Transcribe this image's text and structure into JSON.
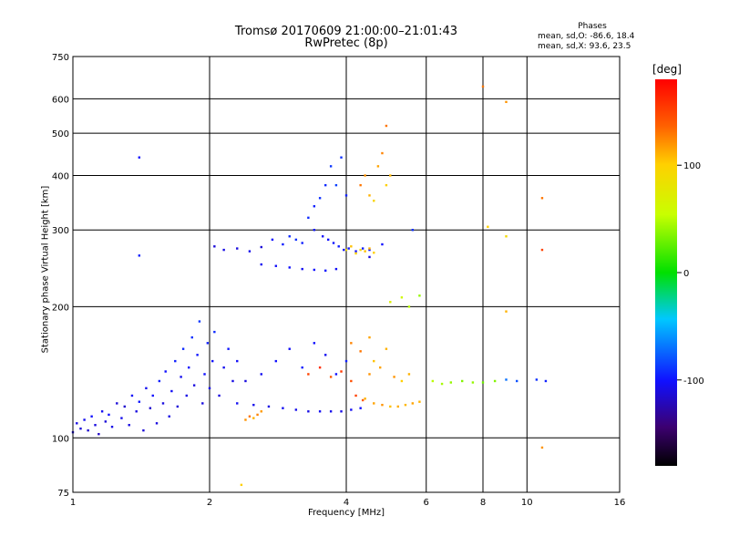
{
  "header": {
    "title_line1": "Tromsø 20170609 21:00:00–21:01:43",
    "title_line2": "RwPretec (8p)",
    "stats_heading": "Phases",
    "stats_o": "mean, sd,O: -86.6, 18.4",
    "stats_x": "mean, sd,X:  93.6, 23.5"
  },
  "colorbar": {
    "unit": "[deg]",
    "tick_labels": [
      "100",
      "0",
      "-100"
    ],
    "ticks": [
      100,
      0,
      -100
    ],
    "range": [
      -180,
      180
    ]
  },
  "chart_data": {
    "type": "scatter",
    "title": "Tromsø 20170609 21:00:00–21:01:43",
    "subtitle": "RwPretec (8p)",
    "xlabel": "Frequency [MHz]",
    "ylabel": "Stationary phase Virtual Height [km]",
    "x_scale": "log",
    "y_scale": "log",
    "xlim": [
      1,
      16
    ],
    "ylim": [
      75,
      750
    ],
    "x_ticks": [
      1,
      2,
      4,
      6,
      8,
      10,
      16
    ],
    "x_tick_labels": [
      "1",
      "2",
      "4",
      "6",
      "8",
      "10",
      "16"
    ],
    "y_ticks": [
      75,
      100,
      200,
      300,
      400,
      500,
      600,
      750
    ],
    "y_tick_labels": [
      "75",
      "100",
      "200",
      "300",
      "400",
      "500",
      "600",
      "750"
    ],
    "grid": true,
    "color_by": "phase [deg]",
    "series": [
      {
        "name": "O",
        "points": [
          [
            1.0,
            103,
            -110
          ],
          [
            1.02,
            108,
            -108
          ],
          [
            1.04,
            105,
            -112
          ],
          [
            1.06,
            110,
            -105
          ],
          [
            1.08,
            104,
            -115
          ],
          [
            1.1,
            112,
            -100
          ],
          [
            1.12,
            107,
            -110
          ],
          [
            1.14,
            102,
            -118
          ],
          [
            1.16,
            115,
            -104
          ],
          [
            1.18,
            109,
            -112
          ],
          [
            1.2,
            113,
            -100
          ],
          [
            1.22,
            106,
            -108
          ],
          [
            1.25,
            120,
            -112
          ],
          [
            1.28,
            111,
            -106
          ],
          [
            1.3,
            118,
            -115
          ],
          [
            1.33,
            107,
            -109
          ],
          [
            1.35,
            125,
            -102
          ],
          [
            1.38,
            115,
            -110
          ],
          [
            1.4,
            121,
            -98
          ],
          [
            1.43,
            104,
            -112
          ],
          [
            1.45,
            130,
            -105
          ],
          [
            1.48,
            117,
            -115
          ],
          [
            1.5,
            125,
            -100
          ],
          [
            1.53,
            108,
            -110
          ],
          [
            1.55,
            135,
            -95
          ],
          [
            1.58,
            120,
            -110
          ],
          [
            1.6,
            142,
            -100
          ],
          [
            1.63,
            112,
            -108
          ],
          [
            1.65,
            128,
            -103
          ],
          [
            1.68,
            150,
            -95
          ],
          [
            1.7,
            118,
            -112
          ],
          [
            1.73,
            138,
            -105
          ],
          [
            1.75,
            160,
            -92
          ],
          [
            1.78,
            125,
            -108
          ],
          [
            1.8,
            145,
            -100
          ],
          [
            1.83,
            170,
            -90
          ],
          [
            1.85,
            132,
            -110
          ],
          [
            1.88,
            155,
            -98
          ],
          [
            1.9,
            185,
            -88
          ],
          [
            1.93,
            120,
            -110
          ],
          [
            1.95,
            140,
            -100
          ],
          [
            1.98,
            165,
            -95
          ],
          [
            2.0,
            130,
            -108
          ],
          [
            2.03,
            150,
            -100
          ],
          [
            2.05,
            175,
            -92
          ],
          [
            2.1,
            125,
            -110
          ],
          [
            2.15,
            145,
            -105
          ],
          [
            2.2,
            160,
            -98
          ],
          [
            2.25,
            135,
            -108
          ],
          [
            2.3,
            150,
            -102
          ],
          [
            2.05,
            275,
            -112
          ],
          [
            2.15,
            270,
            -108
          ],
          [
            2.3,
            272,
            -110
          ],
          [
            2.45,
            268,
            -106
          ],
          [
            2.6,
            274,
            -112
          ],
          [
            2.75,
            285,
            -100
          ],
          [
            2.9,
            278,
            -96
          ],
          [
            3.0,
            290,
            -92
          ],
          [
            3.1,
            285,
            -90
          ],
          [
            3.2,
            280,
            -95
          ],
          [
            2.6,
            250,
            -104
          ],
          [
            2.8,
            248,
            -102
          ],
          [
            3.0,
            246,
            -100
          ],
          [
            3.2,
            244,
            -104
          ],
          [
            3.4,
            243,
            -100
          ],
          [
            3.6,
            242,
            -98
          ],
          [
            3.8,
            244,
            -102
          ],
          [
            3.3,
            320,
            -92
          ],
          [
            3.4,
            340,
            -95
          ],
          [
            3.5,
            355,
            -90
          ],
          [
            3.6,
            380,
            -92
          ],
          [
            3.7,
            420,
            -88
          ],
          [
            3.8,
            380,
            -85
          ],
          [
            3.9,
            440,
            -90
          ],
          [
            4.0,
            360,
            -95
          ],
          [
            3.4,
            300,
            -98
          ],
          [
            3.55,
            290,
            -102
          ],
          [
            3.65,
            285,
            -100
          ],
          [
            3.75,
            280,
            -98
          ],
          [
            3.85,
            275,
            -96
          ],
          [
            3.95,
            270,
            -100
          ],
          [
            4.05,
            272,
            -98
          ],
          [
            4.2,
            268,
            -100
          ],
          [
            4.35,
            272,
            -96
          ],
          [
            4.5,
            270,
            -102
          ],
          [
            2.3,
            120,
            -104
          ],
          [
            2.5,
            119,
            -106
          ],
          [
            2.7,
            118,
            -108
          ],
          [
            2.9,
            117,
            -104
          ],
          [
            3.1,
            116,
            -106
          ],
          [
            3.3,
            115,
            -108
          ],
          [
            3.5,
            115,
            -104
          ],
          [
            3.7,
            115,
            -106
          ],
          [
            3.9,
            115,
            -108
          ],
          [
            4.1,
            116,
            -104
          ],
          [
            4.3,
            117,
            -100
          ],
          [
            2.4,
            135,
            -110
          ],
          [
            2.6,
            140,
            -104
          ],
          [
            2.8,
            150,
            -100
          ],
          [
            3.0,
            160,
            -102
          ],
          [
            3.2,
            145,
            -96
          ],
          [
            3.4,
            165,
            -100
          ],
          [
            3.6,
            155,
            -104
          ],
          [
            3.8,
            140,
            -100
          ],
          [
            4.0,
            150,
            -95
          ],
          [
            1.4,
            440,
            -100
          ],
          [
            1.4,
            262,
            -95
          ],
          [
            5.6,
            300,
            -90
          ],
          [
            4.5,
            260,
            -110
          ],
          [
            4.8,
            278,
            -100
          ]
        ]
      },
      {
        "name": "X",
        "points": [
          [
            2.4,
            110,
            120
          ],
          [
            2.45,
            112,
            130
          ],
          [
            2.5,
            111,
            110
          ],
          [
            2.55,
            113,
            125
          ],
          [
            2.6,
            115,
            118
          ],
          [
            4.2,
            265,
            100
          ],
          [
            4.3,
            270,
            95
          ],
          [
            4.4,
            268,
            105
          ],
          [
            4.5,
            272,
            110
          ],
          [
            4.6,
            266,
            100
          ],
          [
            4.0,
            270,
            90
          ],
          [
            4.1,
            275,
            105
          ],
          [
            4.3,
            380,
            130
          ],
          [
            4.4,
            400,
            120
          ],
          [
            4.5,
            360,
            110
          ],
          [
            4.7,
            420,
            115
          ],
          [
            4.8,
            450,
            125
          ],
          [
            4.9,
            380,
            100
          ],
          [
            5.0,
            400,
            108
          ],
          [
            4.6,
            350,
            95
          ],
          [
            4.4,
            123,
            110
          ],
          [
            4.6,
            120,
            115
          ],
          [
            4.8,
            119,
            120
          ],
          [
            5.0,
            118,
            105
          ],
          [
            5.2,
            118,
            112
          ],
          [
            5.4,
            119,
            108
          ],
          [
            5.6,
            120,
            115
          ],
          [
            5.8,
            121,
            110
          ],
          [
            4.2,
            125,
            150
          ],
          [
            4.35,
            122,
            140
          ],
          [
            4.5,
            140,
            120
          ],
          [
            4.6,
            150,
            105
          ],
          [
            4.75,
            145,
            115
          ],
          [
            4.9,
            160,
            110
          ],
          [
            5.1,
            138,
            120
          ],
          [
            5.3,
            135,
            100
          ],
          [
            5.5,
            140,
            110
          ],
          [
            4.1,
            165,
            125
          ],
          [
            4.3,
            158,
            130
          ],
          [
            4.5,
            170,
            115
          ],
          [
            3.3,
            140,
            150
          ],
          [
            3.5,
            145,
            160
          ],
          [
            3.7,
            138,
            140
          ],
          [
            3.9,
            142,
            155
          ],
          [
            4.1,
            135,
            145
          ],
          [
            5.0,
            205,
            70
          ],
          [
            5.3,
            210,
            60
          ],
          [
            5.5,
            200,
            50
          ],
          [
            5.8,
            212,
            40
          ],
          [
            4.9,
            520,
            130
          ],
          [
            6.2,
            135,
            50
          ],
          [
            6.5,
            133,
            45
          ],
          [
            6.8,
            134,
            40
          ],
          [
            7.2,
            135,
            35
          ],
          [
            7.6,
            134,
            40
          ],
          [
            8.0,
            134,
            30
          ],
          [
            8.5,
            135,
            35
          ],
          [
            9.0,
            136,
            -70
          ],
          [
            9.5,
            135,
            -80
          ],
          [
            10.5,
            136,
            -90
          ],
          [
            11.0,
            135,
            -95
          ],
          [
            8.0,
            640,
            130
          ],
          [
            9.0,
            590,
            120
          ],
          [
            8.2,
            305,
            100
          ],
          [
            9.0,
            290,
            90
          ],
          [
            9.0,
            195,
            110
          ],
          [
            10.8,
            355,
            130
          ],
          [
            10.8,
            270,
            150
          ],
          [
            10.8,
            95,
            120
          ],
          [
            2.35,
            78,
            100
          ]
        ]
      }
    ]
  }
}
